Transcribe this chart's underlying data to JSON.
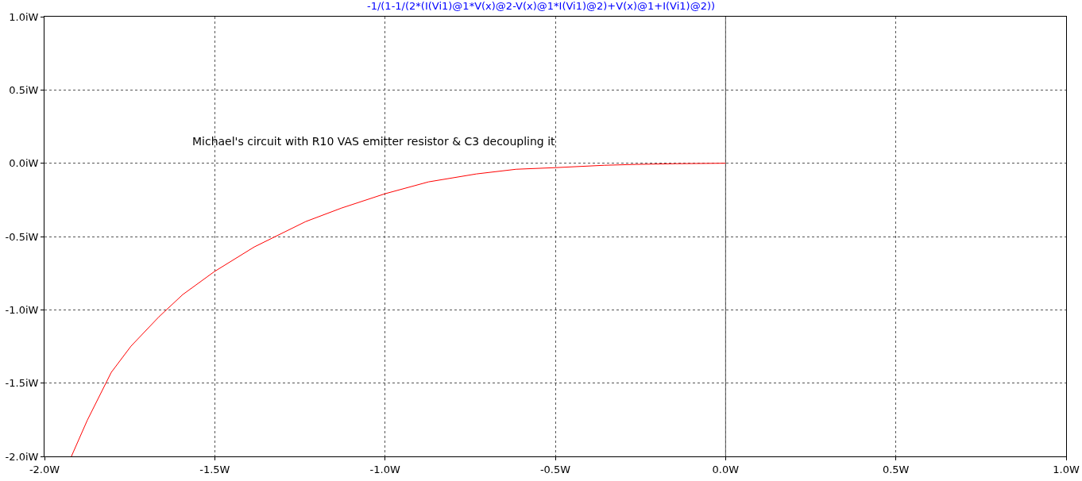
{
  "chart_data": {
    "type": "line",
    "title": "-1/(1-1/(2*(I(Vi1)@1*V(x)@2-V(x)@1*I(Vi1)@2)+V(x)@1+I(Vi1)@2))",
    "x": [
      -1.921,
      -1.874,
      -1.804,
      -1.746,
      -1.664,
      -1.594,
      -1.501,
      -1.384,
      -1.233,
      -1.128,
      -1.0,
      -0.872,
      -0.732,
      -0.615,
      -0.5,
      -0.357,
      -0.264,
      -0.147,
      0.0
    ],
    "series": [
      {
        "color": "#ff0000",
        "values": [
          -2.0,
          -1.752,
          -1.427,
          -1.248,
          -1.048,
          -0.896,
          -0.739,
          -0.571,
          -0.398,
          -0.306,
          -0.208,
          -0.127,
          -0.073,
          -0.041,
          -0.03,
          -0.014,
          -0.008,
          -0.003,
          0.0
        ]
      }
    ],
    "xlim": [
      -2.0,
      1.0
    ],
    "ylim": [
      -2.0,
      1.0
    ],
    "xticks": [
      {
        "value": -2.0,
        "label": "-2.0W"
      },
      {
        "value": -1.5,
        "label": "-1.5W"
      },
      {
        "value": -1.0,
        "label": "-1.0W"
      },
      {
        "value": -0.5,
        "label": "-0.5W"
      },
      {
        "value": 0.0,
        "label": "0.0W"
      },
      {
        "value": 0.5,
        "label": "0.5W"
      },
      {
        "value": 1.0,
        "label": "1.0W"
      }
    ],
    "yticks": [
      {
        "value": -2.0,
        "label": "-2.0iW"
      },
      {
        "value": -1.5,
        "label": "-1.5iW"
      },
      {
        "value": -1.0,
        "label": "-1.0iW"
      },
      {
        "value": -0.5,
        "label": "-0.5iW"
      },
      {
        "value": 0.0,
        "label": "0.0iW"
      },
      {
        "value": 0.5,
        "label": "0.5iW"
      },
      {
        "value": 1.0,
        "label": "1.0iW"
      }
    ],
    "ref_lines": [
      {
        "axis": "x",
        "value": 0.0,
        "color": "#555555",
        "line_style": "solid"
      }
    ],
    "annotations": [
      "Michael's circuit with R10 VAS emitter resistor & C3 decoupling it"
    ],
    "grid": true,
    "marker": "none",
    "line_style": "solid"
  }
}
